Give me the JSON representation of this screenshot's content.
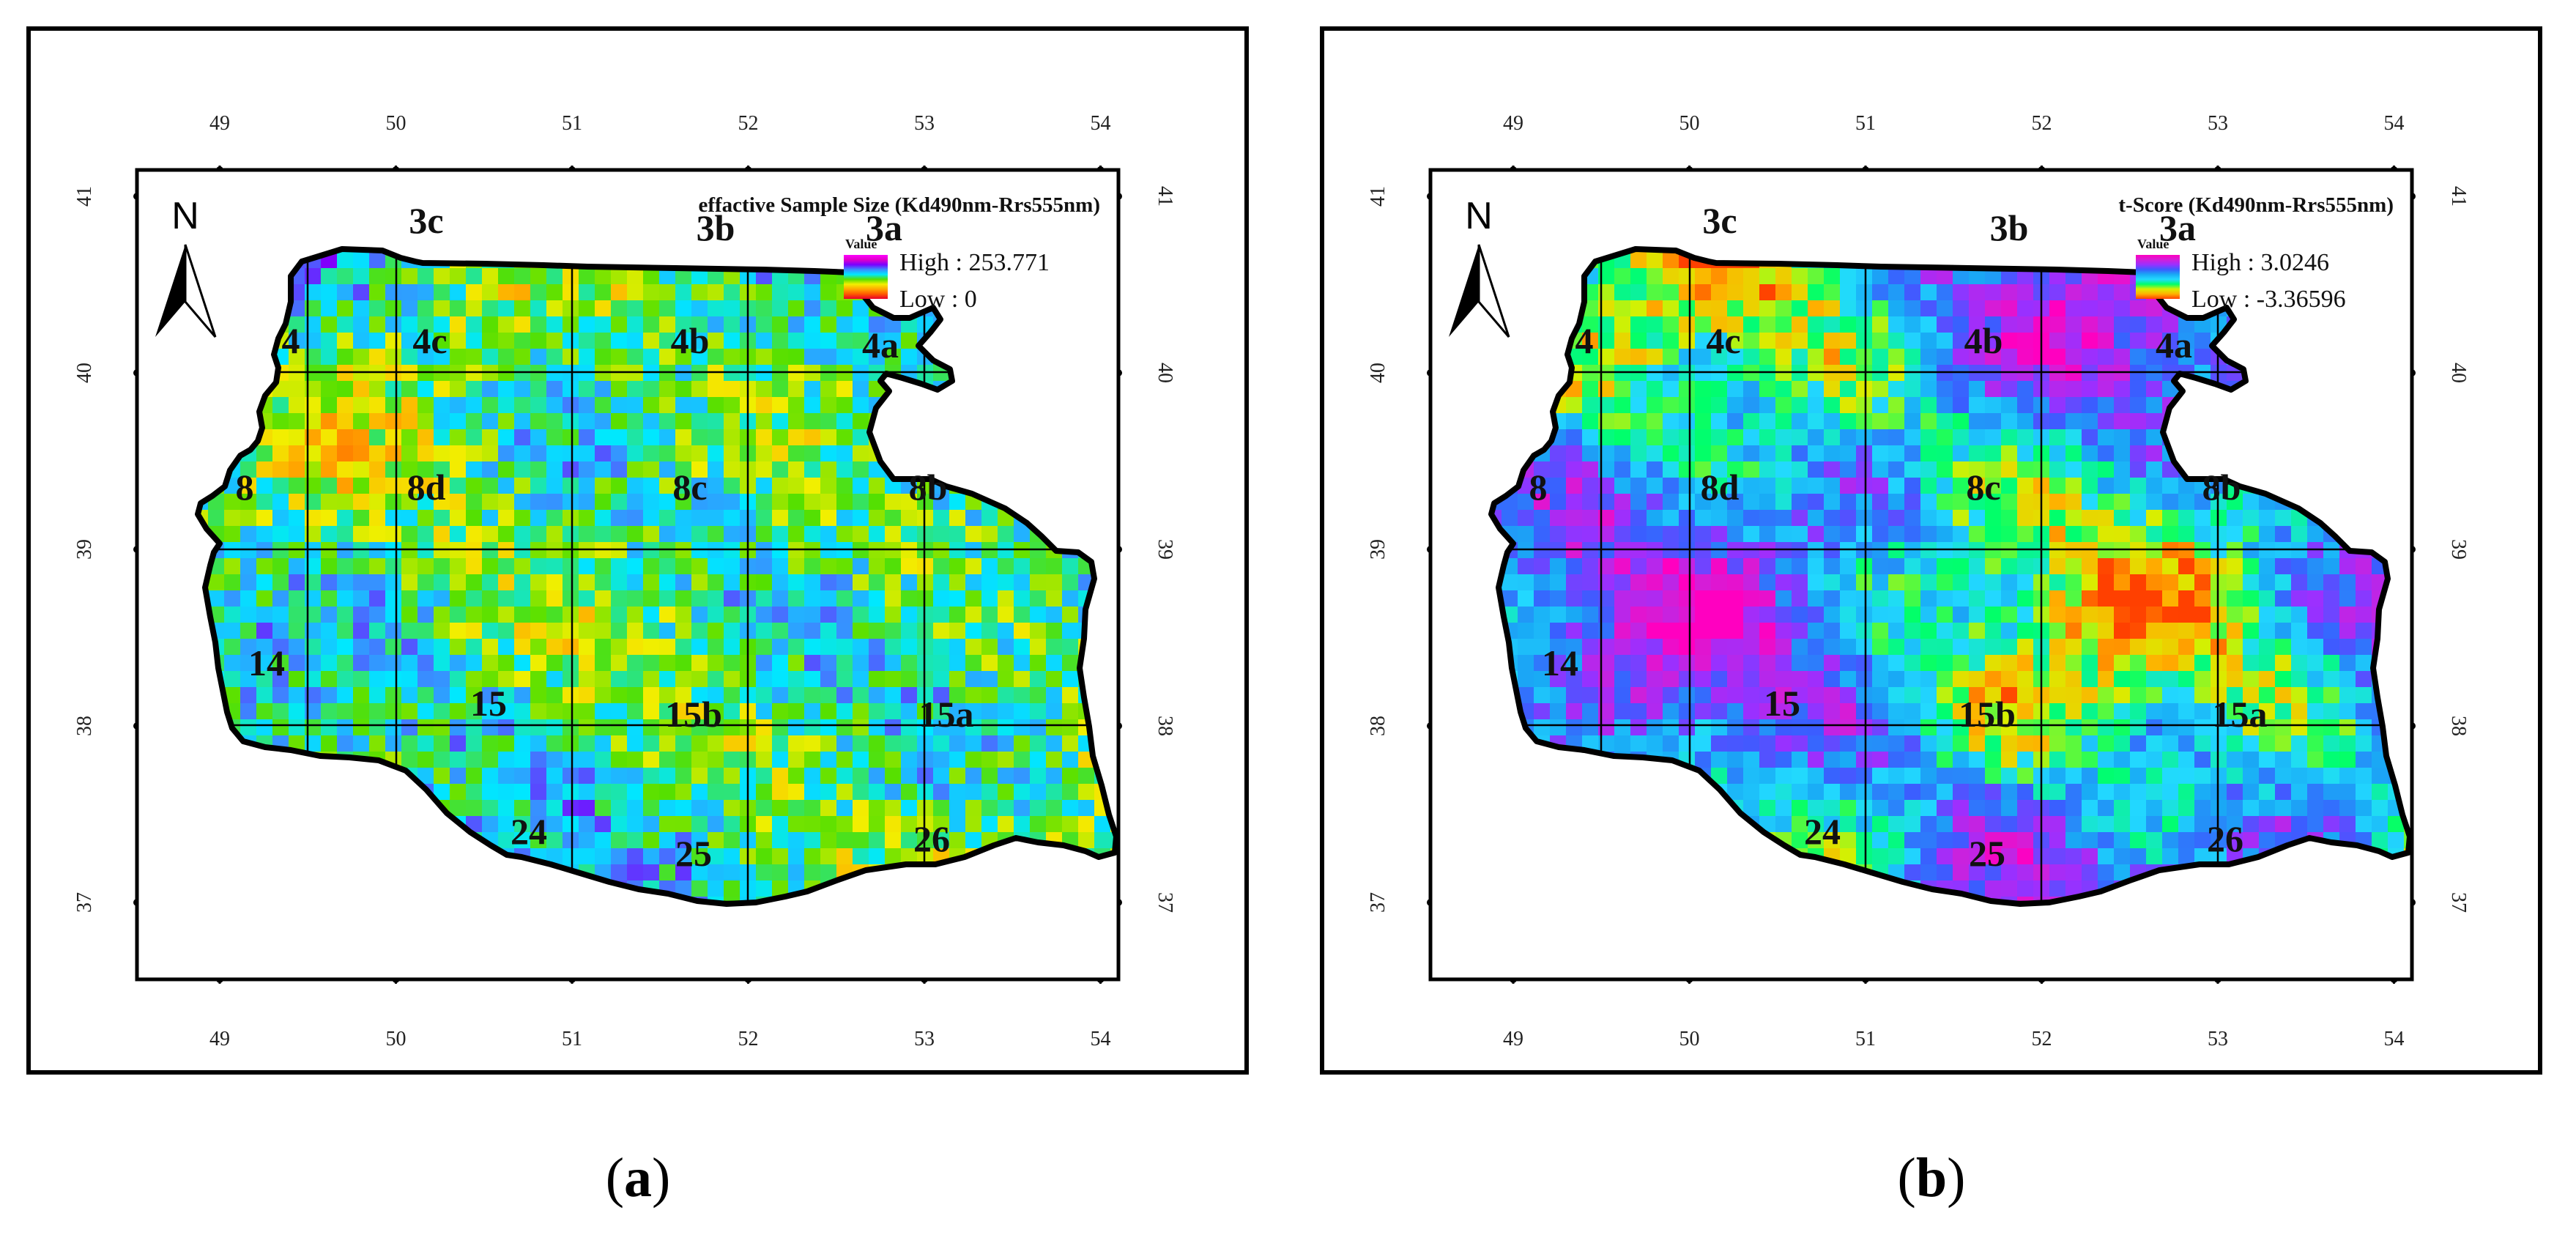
{
  "panels": [
    {
      "id": "a",
      "caption": "a",
      "title": "effactive Sample Size (Kd490nm-Rrs555nm)",
      "legend": {
        "heading": "Value",
        "high": "High : 253.771",
        "low": "Low : 0"
      },
      "palette": "size",
      "seed": 7
    },
    {
      "id": "b",
      "caption": "b",
      "title": "t-Score (Kd490nm-Rrs555nm)",
      "legend": {
        "heading": "Value",
        "high": "High : 3.0246",
        "low": "Low : -3.36596"
      },
      "palette": "tscore",
      "seed": 31
    }
  ],
  "north_label": "N",
  "lon_ticks": [
    "49",
    "50",
    "51",
    "52",
    "53",
    "54"
  ],
  "lat_ticks": [
    "41",
    "40",
    "39",
    "38",
    "37"
  ],
  "zones": [
    "3c",
    "3b",
    "3a",
    "4",
    "4c",
    "4b",
    "4a",
    "8",
    "8d",
    "8c",
    "8b",
    "14",
    "15",
    "15b",
    "15a",
    "24",
    "25",
    "26"
  ],
  "colors": {
    "size_ramp": [
      "#e8002a",
      "#ff5a00",
      "#ffa800",
      "#f2ef00",
      "#55e000",
      "#00e8ff",
      "#3a8cff",
      "#7a00ff",
      "#e000c8",
      "#ff00ff"
    ],
    "tscore_ramp": [
      "#ff00c0",
      "#d21fd8",
      "#9a30ff",
      "#3b5dff",
      "#19aaf5",
      "#22d9ff",
      "#00ff6a",
      "#d8f000",
      "#ffb000",
      "#ff4000"
    ]
  }
}
